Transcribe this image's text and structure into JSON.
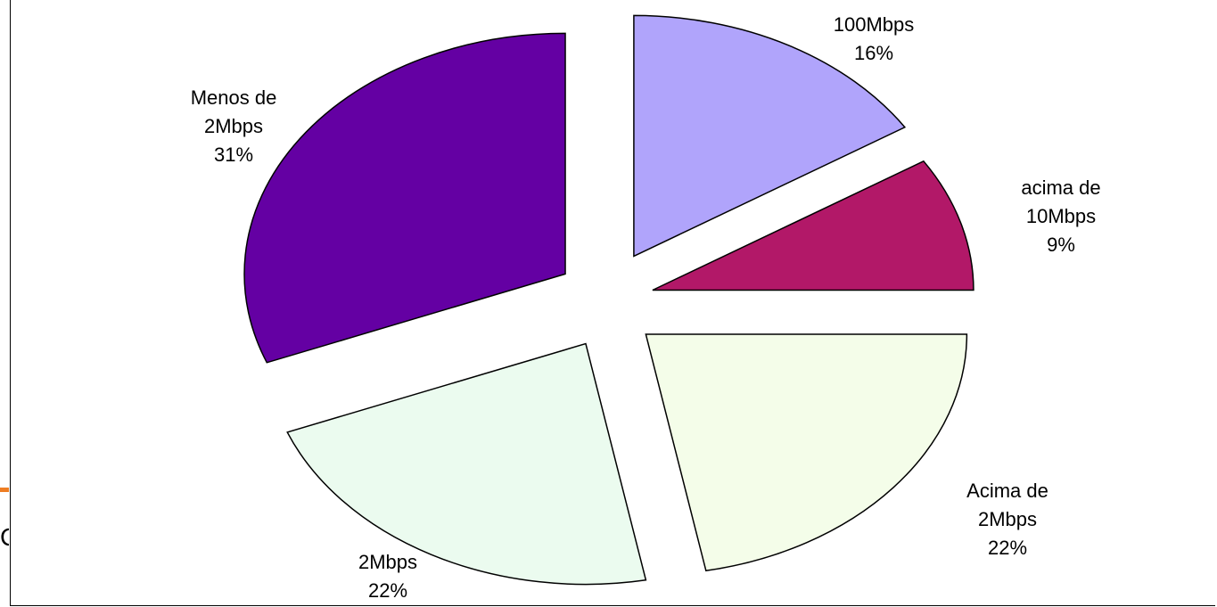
{
  "chart_data": {
    "type": "pie",
    "exploded": true,
    "slices": [
      {
        "label_lines": [
          "100Mbps"
        ],
        "value": 16,
        "value_label": "16%",
        "color": "#b0a4fb"
      },
      {
        "label_lines": [
          "acima de",
          "10Mbps"
        ],
        "value": 9,
        "value_label": "9%",
        "color": "#b21868"
      },
      {
        "label_lines": [
          "Acima de",
          "2Mbps"
        ],
        "value": 22,
        "value_label": "22%",
        "color": "#f4fde9"
      },
      {
        "label_lines": [
          "2Mbps"
        ],
        "value": 22,
        "value_label": "22%",
        "color": "#ebfbef"
      },
      {
        "label_lines": [
          "Menos de",
          "2Mbps"
        ],
        "value": 31,
        "value_label": "31%",
        "color": "#6400a3"
      }
    ]
  },
  "decor": {
    "left_glyph": "C",
    "accent_color": "#ee7d22"
  }
}
